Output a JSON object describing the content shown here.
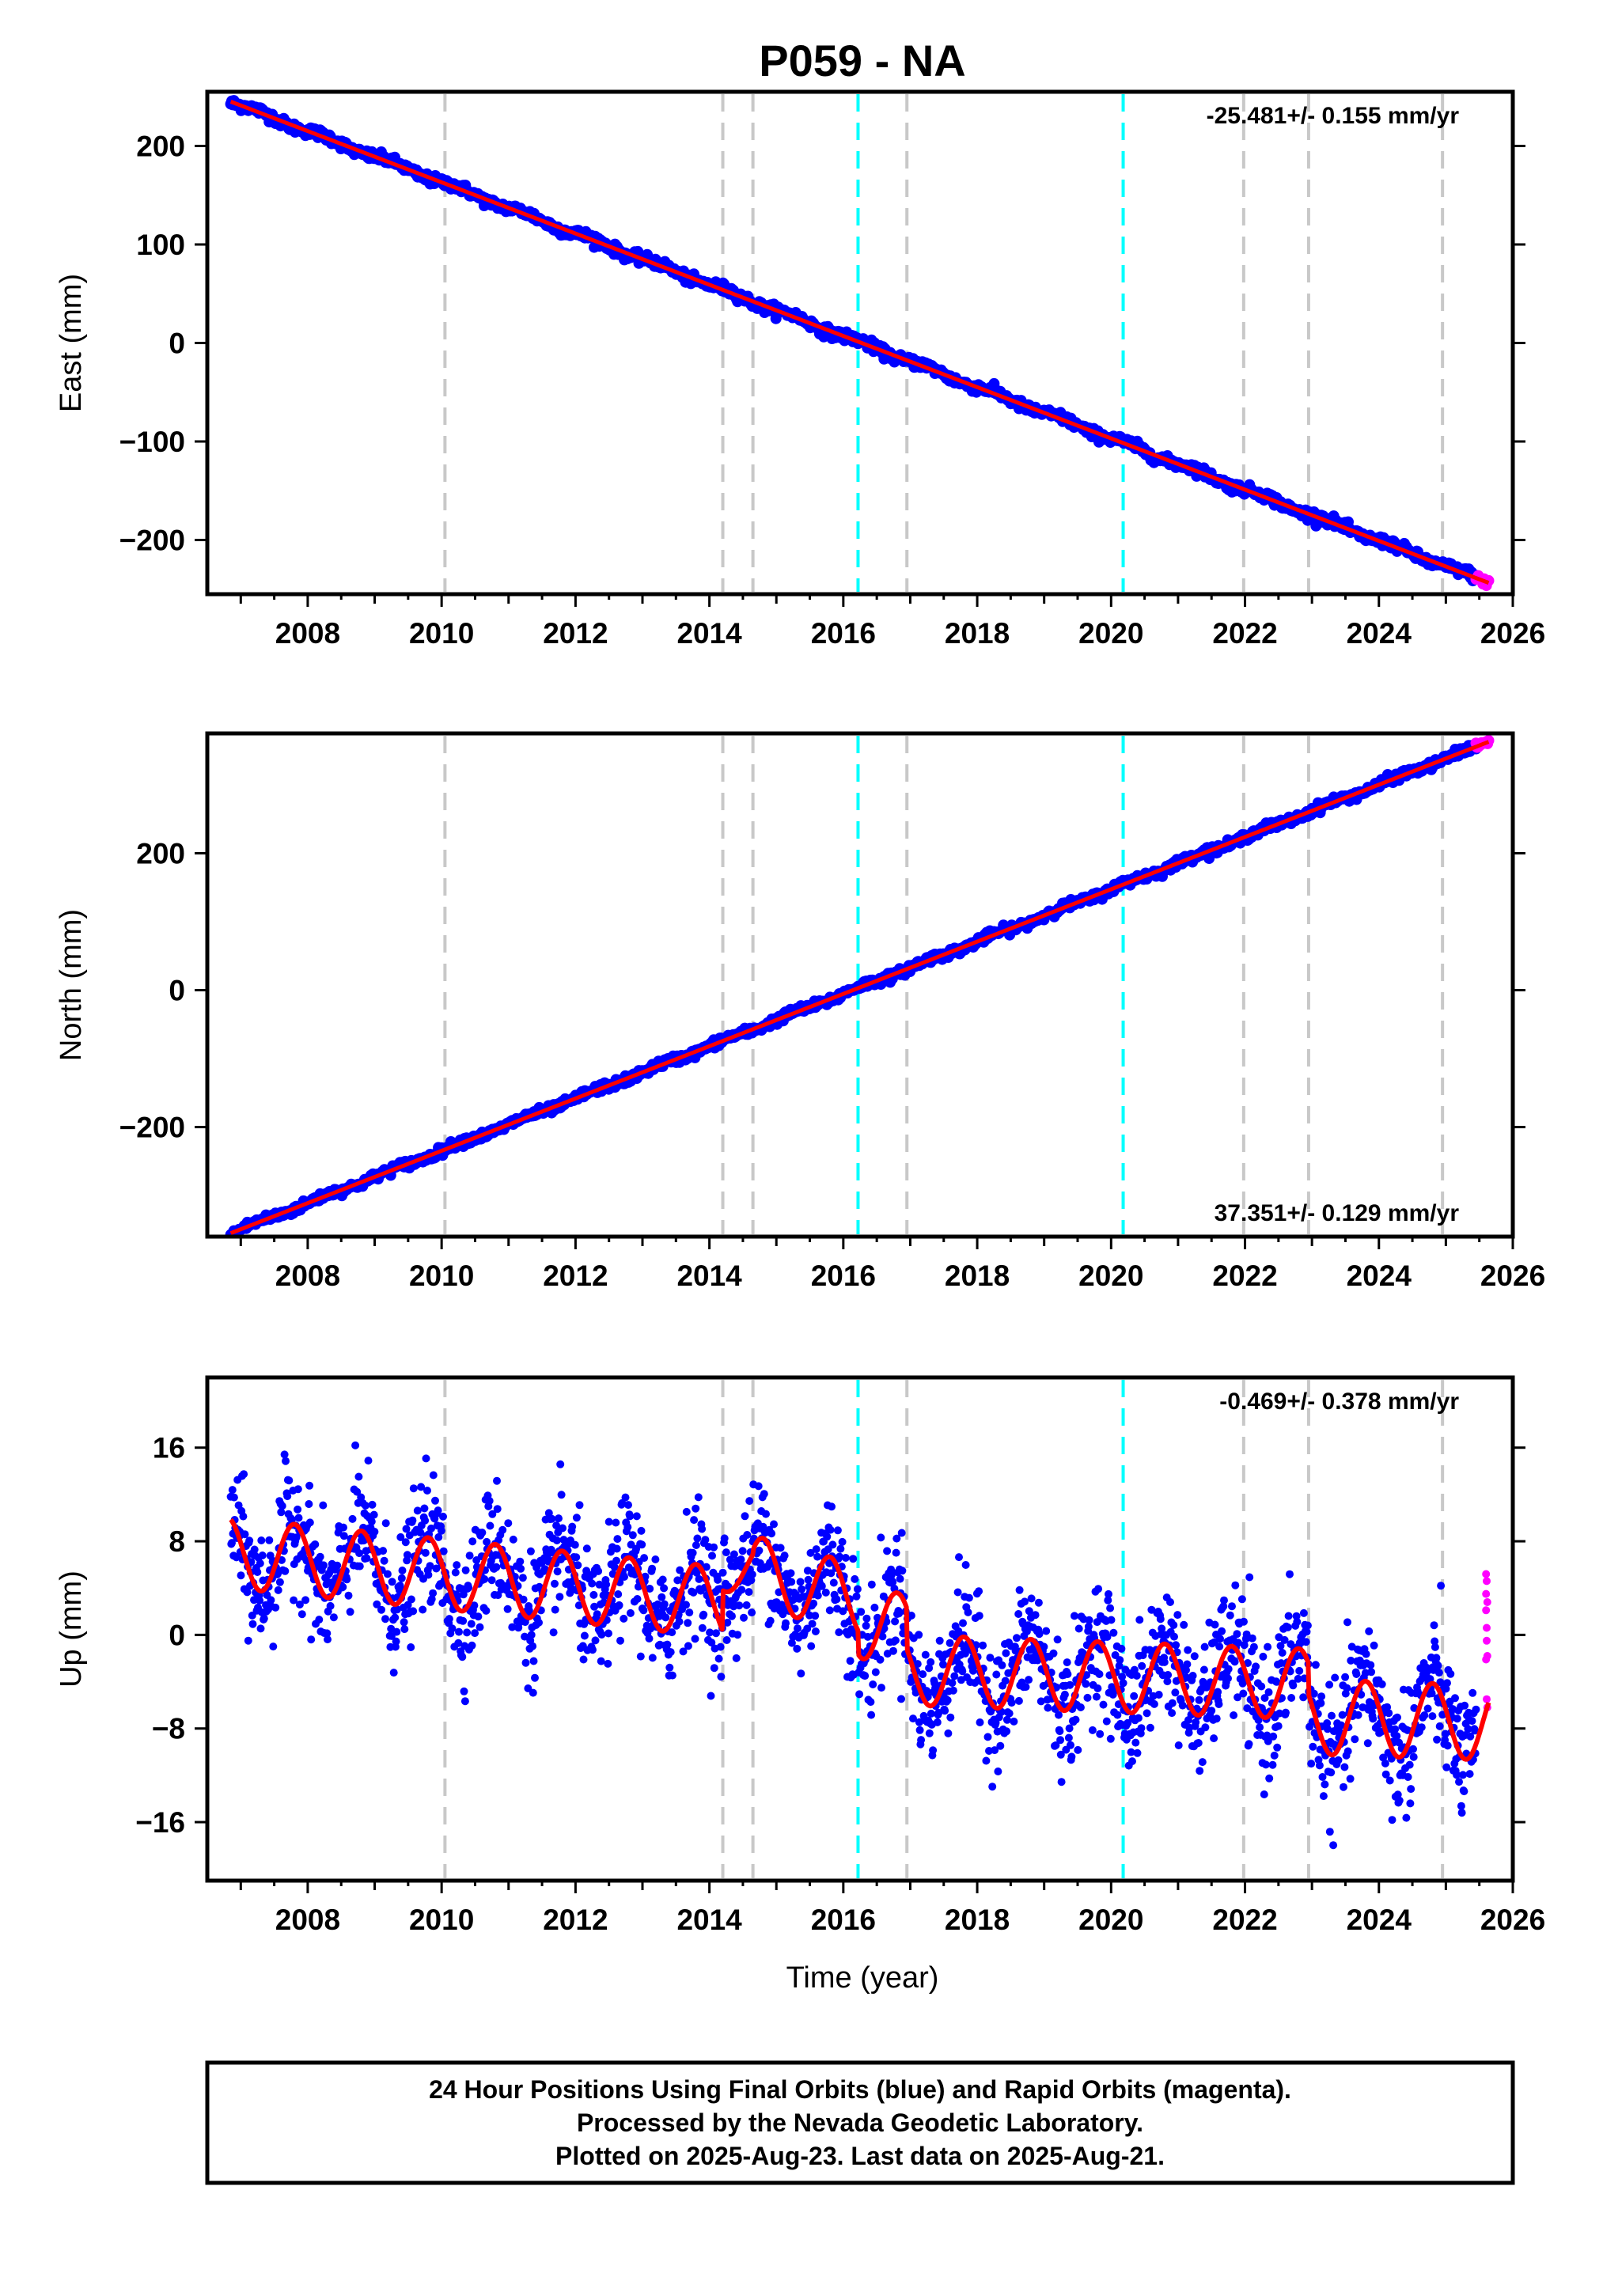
{
  "title": "P059 - NA",
  "colors": {
    "final": "#0000ff",
    "rapid": "#ff00ff",
    "fit": "#ff0000",
    "equipment": "#c8c8c8",
    "earthquake": "#00ffff"
  },
  "xlabel": "Time (year)",
  "footer": {
    "line1": "24 Hour Positions Using Final Orbits (blue) and Rapid Orbits (magenta).",
    "line2": "Processed by the Nevada Geodetic Laboratory.",
    "line3": "Plotted on 2025-Aug-23. Last data on 2025-Aug-21."
  },
  "chart_data": [
    {
      "type": "scatter",
      "ylabel": "East (mm)",
      "rate_label": "-25.481+/- 0.155 mm/yr",
      "rate_position": "top-right",
      "xlim": [
        2006.5,
        2026.0
      ],
      "ylim": [
        -255,
        255
      ],
      "xticks": [
        "2008",
        "2010",
        "2012",
        "2014",
        "2016",
        "2018",
        "2020",
        "2022",
        "2024",
        "2026"
      ],
      "yticks": [
        "200",
        "100",
        "0",
        "−100",
        "−200"
      ],
      "ytick_values": [
        200,
        100,
        0,
        -100,
        -200
      ],
      "rate_mm_per_yr": -25.481,
      "start": [
        2006.85,
        245
      ],
      "end": [
        2025.62,
        -243
      ],
      "series": [
        {
          "role": "final",
          "x_range": [
            2006.85,
            2025.45
          ],
          "scatter_mm": 2.5,
          "seasonal_amp_mm": 2
        },
        {
          "role": "rapid",
          "x_range": [
            2025.45,
            2025.64
          ],
          "scatter_mm": 2
        },
        {
          "role": "fit",
          "x_range": [
            2006.85,
            2025.64
          ]
        }
      ],
      "vlines_equipment": [
        2010.05,
        2014.2,
        2014.65,
        2016.95,
        2021.98,
        2022.95,
        2024.95
      ],
      "vlines_earthquake": [
        2016.22,
        2020.18
      ],
      "grid": false
    },
    {
      "type": "scatter",
      "ylabel": "North (mm)",
      "rate_label": "37.351+/- 0.129 mm/yr",
      "rate_position": "bottom-right",
      "xlim": [
        2006.5,
        2026.0
      ],
      "ylim": [
        -360,
        375
      ],
      "xticks": [
        "2008",
        "2010",
        "2012",
        "2014",
        "2016",
        "2018",
        "2020",
        "2022",
        "2024",
        "2026"
      ],
      "yticks": [
        "200",
        "0",
        "−200"
      ],
      "ytick_values": [
        200,
        0,
        -200
      ],
      "rate_mm_per_yr": 37.351,
      "start": [
        2006.85,
        -355
      ],
      "end": [
        2025.62,
        362
      ],
      "series": [
        {
          "role": "final",
          "x_range": [
            2006.85,
            2025.45
          ],
          "scatter_mm": 3,
          "seasonal_amp_mm": 2
        },
        {
          "role": "rapid",
          "x_range": [
            2025.45,
            2025.64
          ],
          "scatter_mm": 2
        },
        {
          "role": "fit",
          "x_range": [
            2006.85,
            2025.64
          ]
        }
      ],
      "vlines_equipment": [
        2010.05,
        2014.2,
        2014.65,
        2016.95,
        2021.98,
        2022.95,
        2024.95
      ],
      "vlines_earthquake": [
        2016.22,
        2020.18
      ],
      "grid": false
    },
    {
      "type": "scatter",
      "ylabel": "Up (mm)",
      "rate_label": "-0.469+/- 0.378 mm/yr",
      "rate_position": "top-right",
      "xlim": [
        2006.5,
        2026.0
      ],
      "ylim": [
        -21,
        22
      ],
      "xticks": [
        "2008",
        "2010",
        "2012",
        "2014",
        "2016",
        "2018",
        "2020",
        "2022",
        "2024",
        "2026"
      ],
      "yticks": [
        "16",
        "8",
        "0",
        "−8",
        "−16"
      ],
      "ytick_values": [
        16,
        8,
        0,
        -8,
        -16
      ],
      "segments": [
        {
          "x_range": [
            2006.85,
            2014.2
          ],
          "start": 7.0,
          "end": 2.8,
          "seasonal_amp_mm": 3.0,
          "peak_phase": 0.8
        },
        {
          "x_range": [
            2014.2,
            2014.65
          ],
          "start": 5.0,
          "end": 6.0,
          "seasonal_amp_mm": 1.5,
          "peak_phase": 0.8
        },
        {
          "x_range": [
            2014.65,
            2016.22
          ],
          "start": 5.5,
          "end": 3.0,
          "seasonal_amp_mm": 3.0,
          "peak_phase": 0.8
        },
        {
          "x_range": [
            2016.22,
            2016.95
          ],
          "start": 1.0,
          "end": 0.5,
          "seasonal_amp_mm": 3.0,
          "peak_phase": 0.8
        },
        {
          "x_range": [
            2016.95,
            2022.95
          ],
          "start": -3.0,
          "end": -4.2,
          "seasonal_amp_mm": 3.0,
          "peak_phase": 0.8
        },
        {
          "x_range": [
            2022.95,
            2025.64
          ],
          "start": -7.0,
          "end": -7.5,
          "seasonal_amp_mm": 3.2,
          "peak_phase": 0.8
        }
      ],
      "series": [
        {
          "role": "final",
          "x_range": [
            2006.85,
            2025.45
          ],
          "scatter_mm": 2.6
        },
        {
          "role": "rapid",
          "x_range": [
            2025.45,
            2025.64
          ],
          "values": [
            5.2,
            4.6,
            2.8,
            2.1,
            0.6,
            -1.8,
            -2.1,
            -5.5,
            -6.2,
            3.5,
            -0.5
          ]
        },
        {
          "role": "fit",
          "x_range": [
            2006.85,
            2025.64
          ]
        }
      ],
      "vlines_equipment": [
        2010.05,
        2014.2,
        2014.65,
        2016.95,
        2021.98,
        2022.95,
        2024.95
      ],
      "vlines_earthquake": [
        2016.22,
        2020.18
      ],
      "grid": false
    }
  ]
}
